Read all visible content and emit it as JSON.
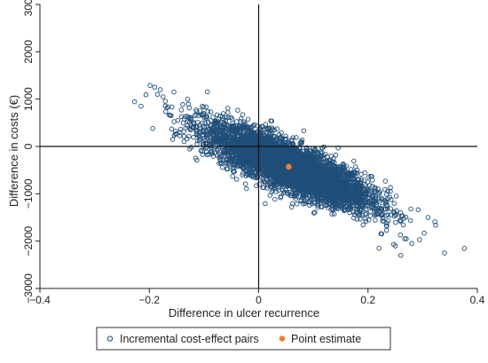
{
  "chart_data": {
    "type": "scatter",
    "title": "",
    "xlabel": "Difference in ulcer recurrence",
    "ylabel": "Difference in costs (€)",
    "xlim": [
      -0.4,
      0.4
    ],
    "ylim": [
      -3000,
      3000
    ],
    "x_ticks": [
      -0.4,
      -0.2,
      0,
      0.2,
      0.4
    ],
    "x_tick_labels": [
      "−0.4",
      "−0.2",
      "0",
      "0.2",
      "0.4"
    ],
    "y_ticks": [
      -3000,
      -2000,
      -1000,
      0,
      1000,
      2000,
      3000
    ],
    "y_tick_labels": [
      "−3000",
      "−2000",
      "−1000",
      "0",
      "1000",
      "2000",
      "3000"
    ],
    "grid": false,
    "reference_lines": {
      "x": 0,
      "y": 0
    },
    "legend_position": "bottom",
    "series": [
      {
        "name": "Incremental cost-effect pairs",
        "marker": "hollow-circle",
        "color": "#1f4e79",
        "points_generated": 5000,
        "cloud": {
          "mean_x": 0.055,
          "mean_y": -420,
          "sd_x": 0.075,
          "sd_y": 430,
          "correlation": -0.82
        },
        "x": [
          -0.215,
          -0.19,
          -0.185,
          -0.18,
          -0.175,
          -0.155,
          -0.13,
          -0.16,
          -0.1,
          0.25,
          0.28,
          0.31,
          0.34,
          0.27,
          0.26,
          0.22
        ],
        "y": [
          850,
          1250,
          1100,
          1200,
          1050,
          1150,
          1000,
          650,
          0,
          -2100,
          -2050,
          -1500,
          -2250,
          -1950,
          -2300,
          -2150
        ]
      },
      {
        "name": "Point estimate",
        "marker": "filled-circle",
        "color": "#ed7d31",
        "x": [
          0.055
        ],
        "y": [
          -430
        ]
      }
    ]
  }
}
